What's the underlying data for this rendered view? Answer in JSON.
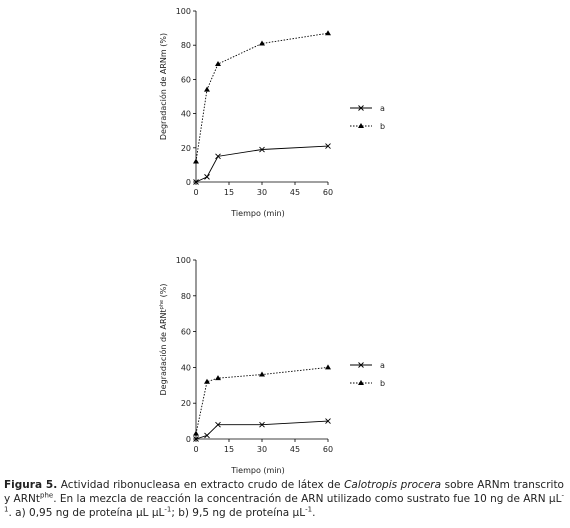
{
  "chart_data": [
    {
      "type": "line",
      "y_label": [
        "Degradación de ARNm (%)"
      ],
      "x_label": "Tiempo (min)",
      "x": [
        0,
        5,
        10,
        30,
        60
      ],
      "series": [
        {
          "name": "a",
          "color": "#000000",
          "line_style": "solid",
          "marker": "x",
          "values": [
            0,
            3,
            15,
            19,
            21
          ]
        },
        {
          "name": "b",
          "color": "#000000",
          "line_style": "dotted",
          "marker": "triangle",
          "values": [
            12,
            54,
            69,
            81,
            87
          ]
        }
      ],
      "xlim": [
        0,
        60
      ],
      "xticks": [
        0,
        15,
        30,
        45,
        60
      ],
      "ylim": [
        0,
        100
      ],
      "yticks": [
        0,
        20,
        40,
        60,
        80,
        100
      ]
    },
    {
      "type": "line",
      "y_label": [
        "Degradación de ARNt",
        "phe",
        " (%)"
      ],
      "x_label": "Tiempo (min)",
      "x": [
        0,
        5,
        10,
        30,
        60
      ],
      "series": [
        {
          "name": "a",
          "color": "#000000",
          "line_style": "solid",
          "marker": "x",
          "values": [
            0,
            2,
            8,
            8,
            10
          ]
        },
        {
          "name": "b",
          "color": "#000000",
          "line_style": "dotted",
          "marker": "triangle",
          "values": [
            3,
            32,
            34,
            36,
            40
          ]
        }
      ],
      "xlim": [
        0,
        60
      ],
      "xticks": [
        0,
        15,
        30,
        45,
        60
      ],
      "ylim": [
        0,
        100
      ],
      "yticks": [
        0,
        20,
        40,
        60,
        80,
        100
      ]
    }
  ],
  "caption": [
    "Figura 5.",
    " Actividad ribonucleasa en extracto crudo de látex de ",
    "Calotropis procera",
    " sobre ARNm transcrito y ARNt",
    "phe",
    ". En la mezcla de reacción la concentración de ARN utilizado como sustrato fue 10 ng de ARN µL",
    "-1",
    ".  a) 0,95 ng de proteína µL µL",
    "-1",
    "; b) 9,5 ng de proteína µL",
    "-1",
    "."
  ]
}
